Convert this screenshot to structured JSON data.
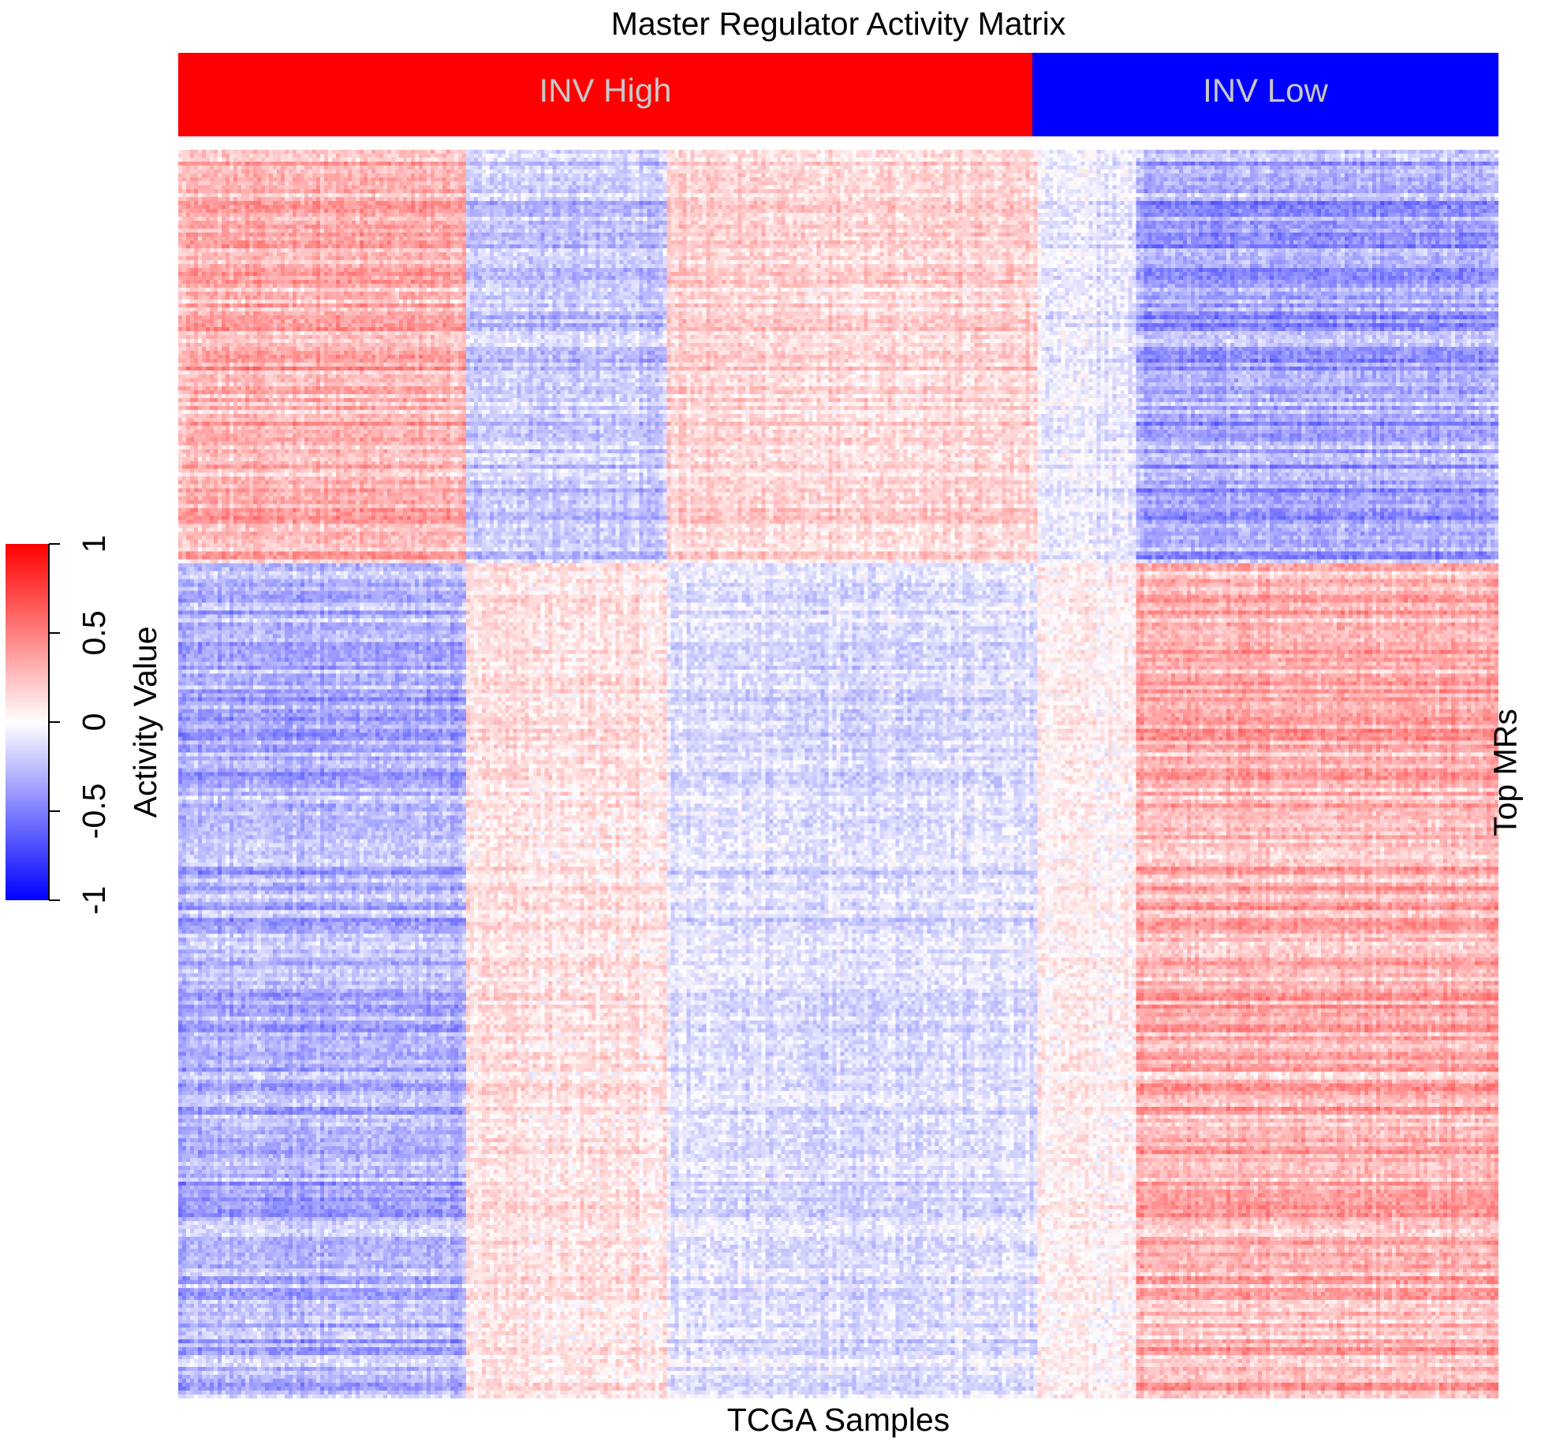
{
  "chart_data": {
    "type": "heatmap",
    "title": "Master Regulator Activity Matrix",
    "xlabel": "TCGA Samples",
    "ylabel": "Top MRs",
    "sample_groups": [
      {
        "name": "INV High",
        "color": "#ff0000",
        "fraction": 0.647
      },
      {
        "name": "INV Low",
        "color": "#0000ff",
        "fraction": 0.353
      }
    ],
    "colorbar": {
      "label": "Activity Value",
      "range": [
        -1,
        1
      ],
      "ticks": [
        "1",
        "0.5",
        "0",
        "-0.5",
        "-1"
      ],
      "low_color": "#0000ff",
      "mid_color": "#ffffff",
      "high_color": "#ff0000"
    },
    "approx_block_pattern": {
      "column_clusters_fraction": [
        0.215,
        0.155,
        0.28,
        0.075,
        0.275
      ],
      "row_clusters_fraction": [
        0.33,
        0.67
      ],
      "mean_activity": [
        [
          0.35,
          -0.25,
          0.2,
          -0.1,
          -0.4
        ],
        [
          -0.35,
          0.12,
          -0.15,
          0.05,
          0.35
        ]
      ]
    }
  }
}
